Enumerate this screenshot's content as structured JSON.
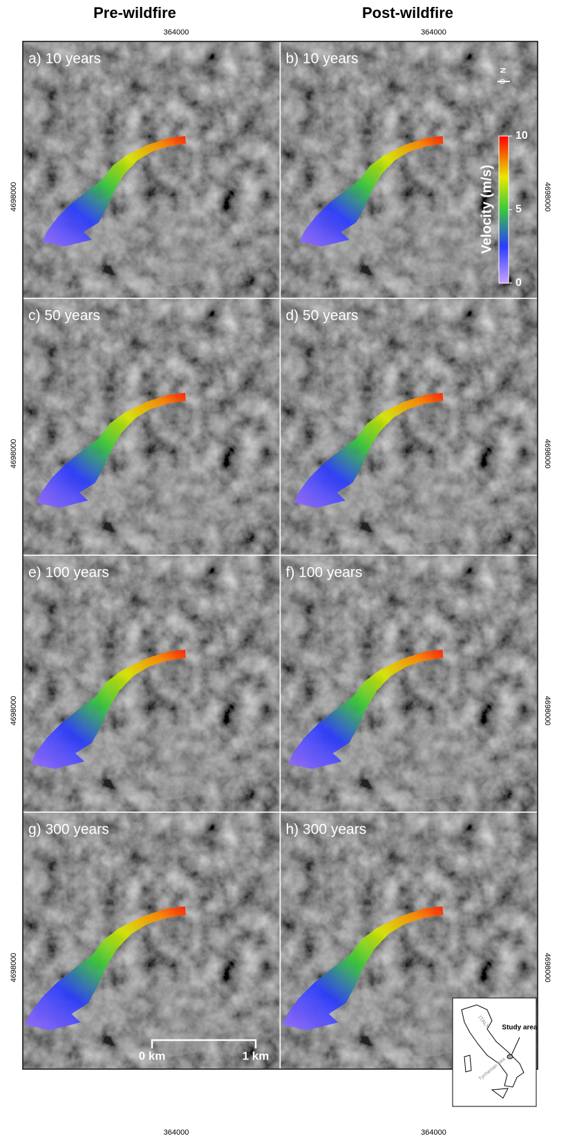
{
  "columns": [
    "Pre-wildfire",
    "Post-wildfire"
  ],
  "panels": [
    "a) 10 years",
    "b) 10 years",
    "c) 50 years",
    "d) 50 years",
    "e) 100 years",
    "f) 100 years",
    "g) 300 years",
    "h) 300 years"
  ],
  "easting": 364000,
  "northing": 4698000,
  "legend": {
    "title": "Velocity (m/s)",
    "lim": [
      0,
      10
    ],
    "ticks": [
      0,
      5,
      10
    ]
  },
  "north_arrow": "N",
  "scale_bar": [
    "0 km",
    "1 km"
  ],
  "inset": {
    "label": "Study area",
    "country": "ITALY",
    "sea": "Tyrrhenian Sea"
  }
}
